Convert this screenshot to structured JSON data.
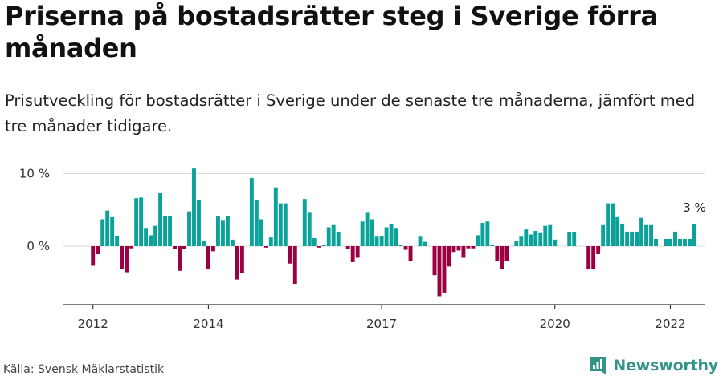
{
  "header": {
    "title": "Priserna på bostadsrätter steg i Sverige förra månaden",
    "subtitle": "Prisutveckling för bostadsrätter i Sverige under de senaste tre månaderna, jämfört med tre månader tidigare."
  },
  "footer": {
    "source": "Källa: Svensk Mäklarstatistik",
    "brand": "Newsworthy"
  },
  "colors": {
    "positive": "#0aa39a",
    "negative": "#9b0041",
    "brand": "#35948a"
  },
  "chart_data": {
    "type": "bar",
    "title": "Priserna på bostadsrätter steg i Sverige förra månaden",
    "subtitle": "Prisutveckling för bostadsrätter i Sverige under de senaste tre månaderna, jämfört med tre månader tidigare.",
    "y_unit": "%",
    "ylim": [
      -8,
      11
    ],
    "yticks": [
      0,
      10
    ],
    "ytick_labels": [
      "0 %",
      "10 %"
    ],
    "xticks": [
      2012,
      2014,
      2017,
      2020,
      2022
    ],
    "grid": true,
    "last_label": "3 %",
    "series": [
      {
        "start": "2012-01",
        "values": [
          -2.7,
          -1.1,
          3.7,
          4.9,
          4.0,
          1.4,
          -3.1,
          -3.6,
          -0.3,
          6.6,
          6.7,
          2.4,
          1.5,
          2.8,
          7.3,
          4.2,
          4.2,
          -0.4,
          -3.4,
          -0.4,
          4.8,
          10.7,
          6.4,
          0.7,
          -3.1,
          -0.7,
          4.1,
          3.5,
          4.2,
          0.9,
          -4.6,
          -3.7,
          0.0,
          9.4,
          6.4,
          3.7,
          -0.2,
          1.2,
          8.1,
          5.9,
          5.9,
          -2.4,
          -5.2,
          0.0,
          6.5,
          4.6,
          1.1,
          -0.2,
          0.2,
          2.6,
          2.9,
          2.0,
          0.0,
          -0.4,
          -2.2,
          -1.6,
          3.4,
          4.6,
          3.7,
          1.3,
          1.4,
          2.6,
          3.1,
          2.4,
          0.2,
          -0.5,
          -2.0,
          0.0,
          1.3,
          0.6,
          0.0,
          -4.0,
          -6.9,
          -6.4,
          -2.8,
          -0.8,
          -0.6,
          -1.6,
          -0.3,
          -0.3,
          1.5,
          3.2,
          3.4,
          0.2,
          -2.1,
          -3.1,
          -2.0,
          0.0,
          0.7,
          1.3,
          2.3,
          1.6,
          2.1,
          1.8,
          2.8,
          2.9,
          0.9,
          0.0,
          0.0,
          1.9,
          1.9,
          0.0,
          0.0,
          -3.1,
          -3.1,
          -1.1,
          2.9,
          5.9,
          5.9,
          4.0,
          3.0,
          2.0,
          2.0,
          2.0,
          3.9,
          2.9,
          2.9,
          1.0,
          0.0,
          1.0,
          1.0,
          2.0,
          1.0,
          1.0,
          1.0,
          3.0
        ]
      }
    ]
  }
}
